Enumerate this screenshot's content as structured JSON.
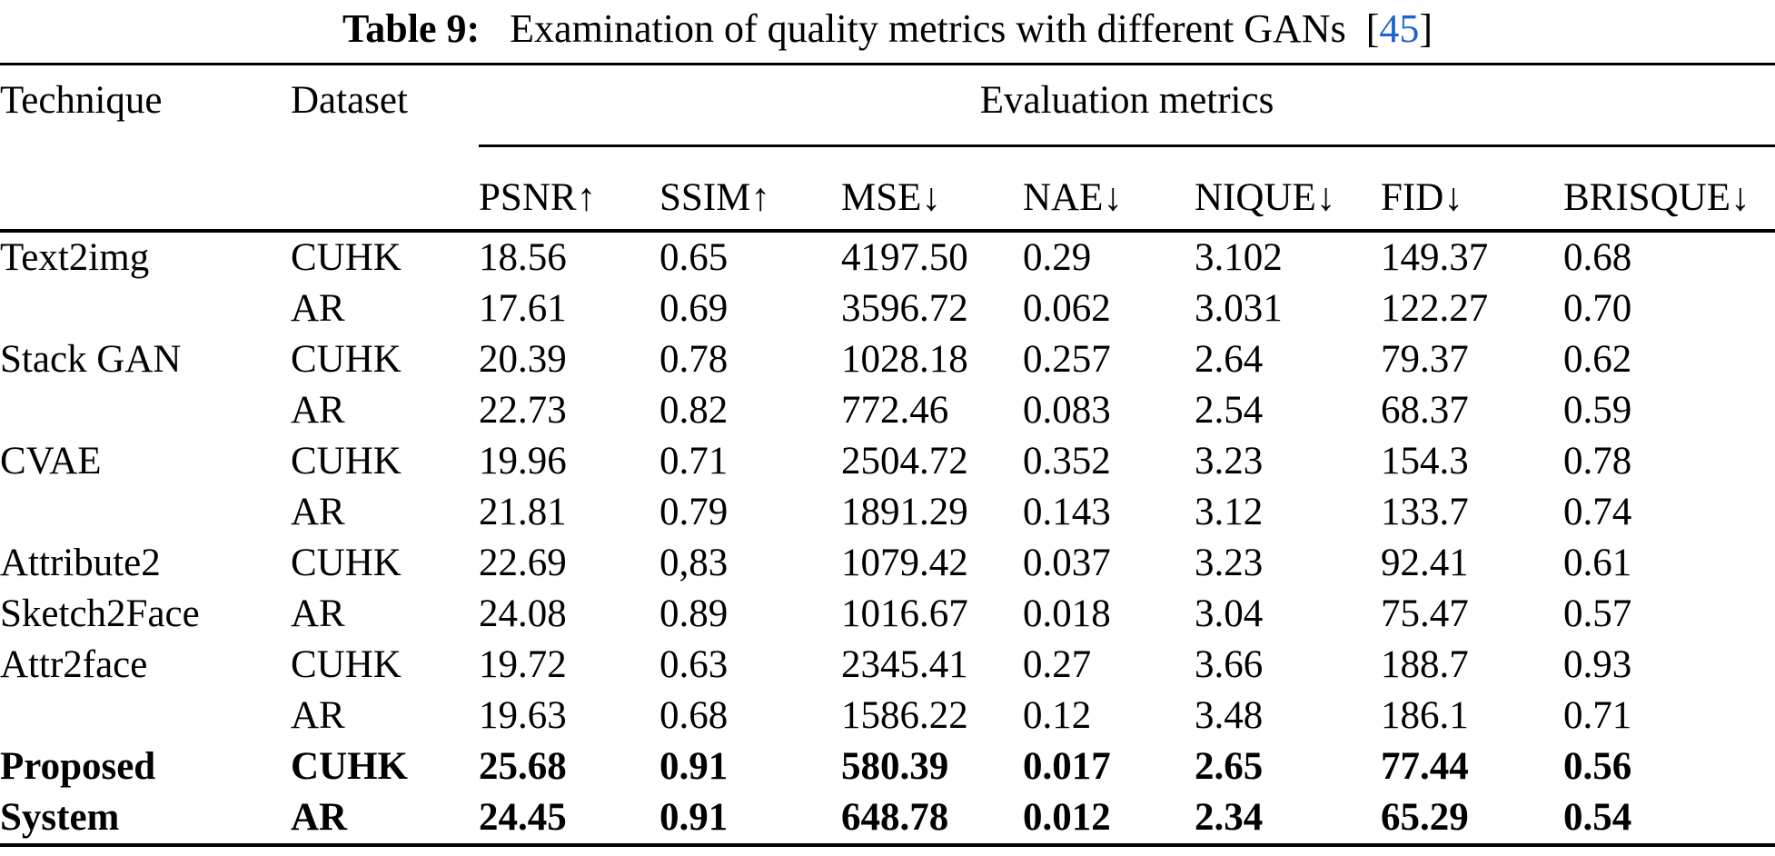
{
  "title": {
    "label": "Table 9:",
    "text": "Examination of quality metrics with different GANs",
    "cite_open": "[",
    "cite_number": "45",
    "cite_close": "]"
  },
  "table": {
    "headers": {
      "technique": "Technique",
      "dataset": "Dataset",
      "metrics_group": "Evaluation metrics"
    },
    "metric_headers": [
      "PSNR↑",
      "SSIM↑",
      "MSE↓",
      "NAE↓",
      "NIQUE↓",
      "FID↓",
      "BRISQUE↓"
    ],
    "rows": [
      {
        "technique": "Text2img",
        "dataset": "CUHK",
        "values": [
          "18.56",
          "0.65",
          "4197.50",
          "0.29",
          "3.102",
          "149.37",
          "0.68"
        ],
        "bold": false
      },
      {
        "technique": "",
        "dataset": "AR",
        "values": [
          "17.61",
          "0.69",
          "3596.72",
          "0.062",
          "3.031",
          "122.27",
          "0.70"
        ],
        "bold": false
      },
      {
        "technique": "Stack GAN",
        "dataset": "CUHK",
        "values": [
          "20.39",
          "0.78",
          "1028.18",
          "0.257",
          "2.64",
          "79.37",
          "0.62"
        ],
        "bold": false
      },
      {
        "technique": "",
        "dataset": "AR",
        "values": [
          "22.73",
          "0.82",
          "772.46",
          "0.083",
          "2.54",
          "68.37",
          "0.59"
        ],
        "bold": false
      },
      {
        "technique": "CVAE",
        "dataset": "CUHK",
        "values": [
          "19.96",
          "0.71",
          "2504.72",
          "0.352",
          "3.23",
          "154.3",
          "0.78"
        ],
        "bold": false
      },
      {
        "technique": "",
        "dataset": "AR",
        "values": [
          "21.81",
          "0.79",
          "1891.29",
          "0.143",
          "3.12",
          "133.7",
          "0.74"
        ],
        "bold": false
      },
      {
        "technique": "Attribute2",
        "dataset": "CUHK",
        "values": [
          "22.69",
          "0,83",
          "1079.42",
          "0.037",
          "3.23",
          "92.41",
          "0.61"
        ],
        "bold": false
      },
      {
        "technique": "Sketch2Face",
        "dataset": "AR",
        "values": [
          "24.08",
          "0.89",
          "1016.67",
          "0.018",
          "3.04",
          "75.47",
          "0.57"
        ],
        "bold": false
      },
      {
        "technique": "Attr2face",
        "dataset": "CUHK",
        "values": [
          "19.72",
          "0.63",
          "2345.41",
          "0.27",
          "3.66",
          "188.7",
          "0.93"
        ],
        "bold": false
      },
      {
        "technique": "",
        "dataset": "AR",
        "values": [
          "19.63",
          "0.68",
          "1586.22",
          "0.12",
          "3.48",
          "186.1",
          "0.71"
        ],
        "bold": false
      },
      {
        "technique": "Proposed",
        "dataset": "CUHK",
        "values": [
          "25.68",
          "0.91",
          "580.39",
          "0.017",
          "2.65",
          "77.44",
          "0.56"
        ],
        "bold": true
      },
      {
        "technique": "System",
        "dataset": "AR",
        "values": [
          "24.45",
          "0.91",
          "648.78",
          "0.012",
          "2.34",
          "65.29",
          "0.54"
        ],
        "bold": true
      }
    ]
  },
  "colors": {
    "citation_blue": "#1e63cc",
    "rule_black": "#000000",
    "background": "#ffffff"
  }
}
